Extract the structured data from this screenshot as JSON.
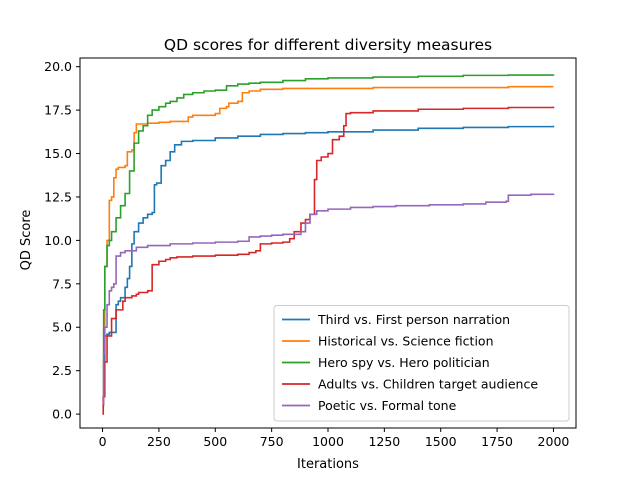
{
  "chart_data": {
    "type": "line",
    "title": "QD scores for different diversity measures",
    "xlabel": "Iterations",
    "ylabel": "QD Score",
    "xlim": [
      -100,
      2100
    ],
    "ylim": [
      -0.8,
      20.5
    ],
    "xticks": [
      0,
      250,
      500,
      750,
      1000,
      1250,
      1500,
      1750,
      2000
    ],
    "yticks": [
      0.0,
      2.5,
      5.0,
      7.5,
      10.0,
      12.5,
      15.0,
      17.5,
      20.0
    ],
    "xtick_labels": [
      "0",
      "250",
      "500",
      "750",
      "1000",
      "1250",
      "1500",
      "1750",
      "2000"
    ],
    "ytick_labels": [
      "0.0",
      "2.5",
      "5.0",
      "7.5",
      "10.0",
      "12.5",
      "15.0",
      "17.5",
      "20.0"
    ],
    "grid": false,
    "legend_position": "lower-right",
    "series": [
      {
        "name": "Third vs. First person narration",
        "color": "#1f77b4",
        "x": [
          0,
          5,
          10,
          20,
          30,
          60,
          70,
          80,
          100,
          110,
          120,
          130,
          140,
          160,
          180,
          200,
          220,
          230,
          240,
          260,
          280,
          300,
          320,
          350,
          400,
          500,
          600,
          700,
          800,
          900,
          1000,
          1200,
          1400,
          1600,
          1800,
          2000
        ],
        "y": [
          0.8,
          3.0,
          4.5,
          4.6,
          4.7,
          6.3,
          6.5,
          6.7,
          7.3,
          7.8,
          8.5,
          9.8,
          10.5,
          11.0,
          11.3,
          11.5,
          11.6,
          13.2,
          13.3,
          14.3,
          14.6,
          15.1,
          15.5,
          15.7,
          15.75,
          15.9,
          16.0,
          16.1,
          16.15,
          16.2,
          16.25,
          16.35,
          16.45,
          16.5,
          16.55,
          16.6
        ]
      },
      {
        "name": "Historical vs. Science fiction",
        "color": "#ff7f0e",
        "x": [
          0,
          5,
          10,
          20,
          30,
          40,
          50,
          60,
          70,
          100,
          110,
          130,
          140,
          150,
          200,
          250,
          300,
          380,
          400,
          500,
          520,
          550,
          560,
          600,
          620,
          650,
          700,
          800,
          1000,
          1200,
          1500,
          1800,
          2000
        ],
        "y": [
          0.5,
          5.0,
          8.5,
          10.0,
          12.3,
          12.5,
          13.6,
          14.1,
          14.2,
          14.3,
          15.1,
          15.2,
          16.2,
          16.7,
          16.75,
          16.8,
          16.85,
          17.1,
          17.2,
          17.3,
          17.6,
          17.7,
          17.9,
          18.0,
          18.5,
          18.6,
          18.7,
          18.75,
          18.75,
          18.8,
          18.8,
          18.85,
          18.85
        ]
      },
      {
        "name": "Hero spy vs. Hero politician",
        "color": "#2ca02c",
        "x": [
          0,
          5,
          10,
          20,
          30,
          40,
          60,
          80,
          100,
          120,
          140,
          160,
          180,
          200,
          220,
          250,
          280,
          300,
          330,
          360,
          400,
          450,
          500,
          550,
          600,
          650,
          700,
          800,
          900,
          1000,
          1200,
          1400,
          1600,
          1800,
          2000
        ],
        "y": [
          0.8,
          6.0,
          8.5,
          9.7,
          10.0,
          10.5,
          11.3,
          12.0,
          12.7,
          14.0,
          15.6,
          16.3,
          16.6,
          17.2,
          17.5,
          17.7,
          17.9,
          18.0,
          18.2,
          18.4,
          18.5,
          18.6,
          18.65,
          18.9,
          19.0,
          19.05,
          19.1,
          19.2,
          19.3,
          19.35,
          19.4,
          19.45,
          19.5,
          19.52,
          19.55
        ]
      },
      {
        "name": "Adults vs. Children target audience",
        "color": "#d62728",
        "x": [
          0,
          3,
          10,
          20,
          40,
          60,
          90,
          100,
          130,
          150,
          160,
          200,
          220,
          250,
          280,
          300,
          330,
          400,
          500,
          600,
          650,
          680,
          700,
          750,
          800,
          830,
          850,
          880,
          900,
          920,
          940,
          950,
          970,
          1000,
          1020,
          1050,
          1070,
          1080,
          1100,
          1200,
          1400,
          1600,
          1800,
          2000
        ],
        "y": [
          0.0,
          1.0,
          3.0,
          4.5,
          5.5,
          6.0,
          6.5,
          6.7,
          6.8,
          6.9,
          7.0,
          7.1,
          8.6,
          8.8,
          8.9,
          9.0,
          9.05,
          9.1,
          9.15,
          9.2,
          9.3,
          9.4,
          9.8,
          9.85,
          9.9,
          10.1,
          10.5,
          11.0,
          11.2,
          11.5,
          13.5,
          14.6,
          14.8,
          15.0,
          15.8,
          16.0,
          16.6,
          17.3,
          17.35,
          17.45,
          17.55,
          17.6,
          17.65,
          17.7
        ]
      },
      {
        "name": "Poetic vs. Formal tone",
        "color": "#9467bd",
        "x": [
          0,
          5,
          10,
          20,
          30,
          40,
          50,
          60,
          80,
          100,
          150,
          200,
          300,
          400,
          500,
          600,
          650,
          700,
          750,
          800,
          880,
          900,
          920,
          950,
          1000,
          1100,
          1200,
          1300,
          1400,
          1450,
          1500,
          1600,
          1700,
          1790,
          1800,
          1900,
          2000
        ],
        "y": [
          0.6,
          3.5,
          5.0,
          6.3,
          7.1,
          7.3,
          7.5,
          9.1,
          9.3,
          9.4,
          9.6,
          9.7,
          9.8,
          9.85,
          9.9,
          9.95,
          10.2,
          10.25,
          10.3,
          10.35,
          10.5,
          11.0,
          11.5,
          11.7,
          11.8,
          11.9,
          11.95,
          12.0,
          12.0,
          12.05,
          12.05,
          12.1,
          12.2,
          12.25,
          12.6,
          12.65,
          12.7
        ]
      }
    ]
  }
}
